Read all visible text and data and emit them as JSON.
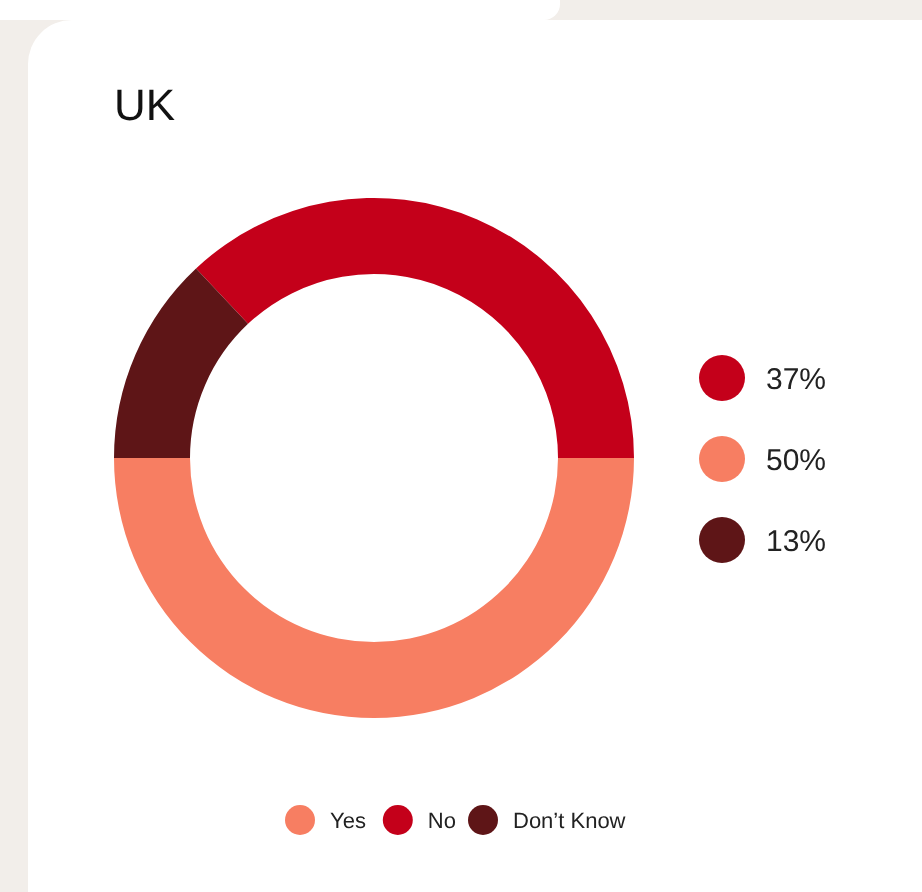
{
  "chart_data": {
    "type": "donut",
    "title": "UK",
    "categories": [
      "Yes",
      "No",
      "Don’t Know"
    ],
    "values": [
      50,
      37,
      13
    ],
    "colors": [
      "#f77e62",
      "#c4001a",
      "#5e1517"
    ],
    "annotations": [
      "37%",
      "50%",
      "13%"
    ],
    "legend": "bottom"
  }
}
